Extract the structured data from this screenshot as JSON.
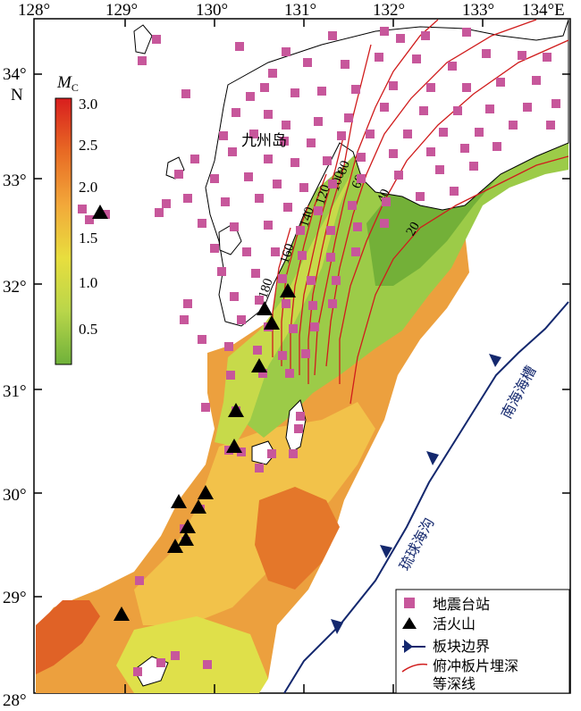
{
  "map": {
    "lon_ticks": [
      "128°",
      "129°",
      "130°",
      "131°",
      "132°",
      "133°",
      "134°E"
    ],
    "lat_ticks": [
      "34°",
      "33°",
      "32°",
      "31°",
      "30°",
      "29°",
      "28°"
    ],
    "lat_hemisphere": "N",
    "region_label": "九州岛",
    "trench_labels": {
      "nankai": "南海海槽",
      "ryukyu": "琉球海沟"
    }
  },
  "colorbar": {
    "title": "M",
    "title_sub": "C",
    "ticks": [
      "3.0",
      "2.5",
      "2.0",
      "1.5",
      "1.0",
      "0.5"
    ],
    "colors": [
      "#d81e1e",
      "#e86a24",
      "#f2a83a",
      "#e8de3e",
      "#b9d64a",
      "#6fb13a"
    ]
  },
  "contours": {
    "labels": [
      "20",
      "40",
      "60",
      "80",
      "100",
      "120",
      "140",
      "160",
      "180"
    ],
    "color": "#d01c1c"
  },
  "legend": {
    "items": [
      {
        "label": "地震台站",
        "symbol": "square",
        "color": "#c7579b"
      },
      {
        "label": "活火山",
        "symbol": "triangle",
        "color": "#000000"
      },
      {
        "label": "板块边界",
        "symbol": "boundary",
        "color": "#14286e"
      },
      {
        "label": "俯冲板片埋深",
        "symbol": "red-line",
        "color": "#d01c1c"
      },
      {
        "label": "等深线",
        "symbol": "none",
        "color": ""
      }
    ]
  }
}
